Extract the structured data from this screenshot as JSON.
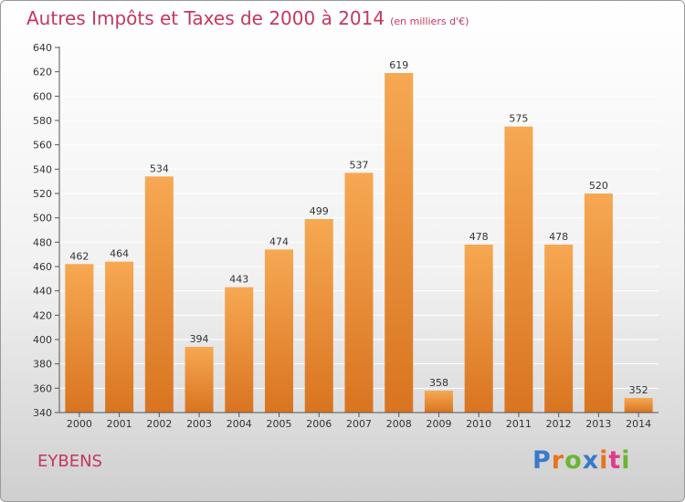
{
  "colors": {
    "title": "#c4385f",
    "bar_light": "#f7a852",
    "bar_dark": "#d97420",
    "axis": "#555555",
    "grid": "#ffffff"
  },
  "footer": {
    "location": "EYBENS",
    "brand": "Proxiti",
    "brand_colors": [
      "#3a79c9",
      "#e8731f",
      "#6bb535",
      "#3a79c9",
      "#e8731f",
      "#e23a8a",
      "#6bb535"
    ]
  },
  "chart_data": {
    "type": "bar",
    "title": "Autres Impôts et Taxes de 2000 à 2014",
    "subtitle": "(en milliers d'€)",
    "xlabel": "",
    "ylabel": "",
    "categories": [
      "2000",
      "2001",
      "2002",
      "2003",
      "2004",
      "2005",
      "2006",
      "2007",
      "2008",
      "2009",
      "2010",
      "2011",
      "2012",
      "2013",
      "2014"
    ],
    "values": [
      462,
      464,
      534,
      394,
      443,
      474,
      499,
      537,
      619,
      358,
      478,
      575,
      478,
      520,
      352
    ],
    "value_labels": [
      "462",
      "464",
      "534",
      "394",
      "443",
      "474",
      "499",
      "537",
      "619",
      "358",
      "478",
      "575",
      "478",
      "520",
      "352"
    ],
    "ylim": [
      340,
      640
    ],
    "yticks": [
      340,
      360,
      380,
      400,
      420,
      440,
      460,
      480,
      500,
      520,
      540,
      560,
      580,
      600,
      620,
      640
    ],
    "ytick_labels": [
      "340",
      "360",
      "380",
      "400",
      "420",
      "440",
      "460",
      "480",
      "500",
      "520",
      "540",
      "560",
      "580",
      "600",
      "620",
      "640"
    ],
    "grid": true,
    "legend": "none"
  }
}
